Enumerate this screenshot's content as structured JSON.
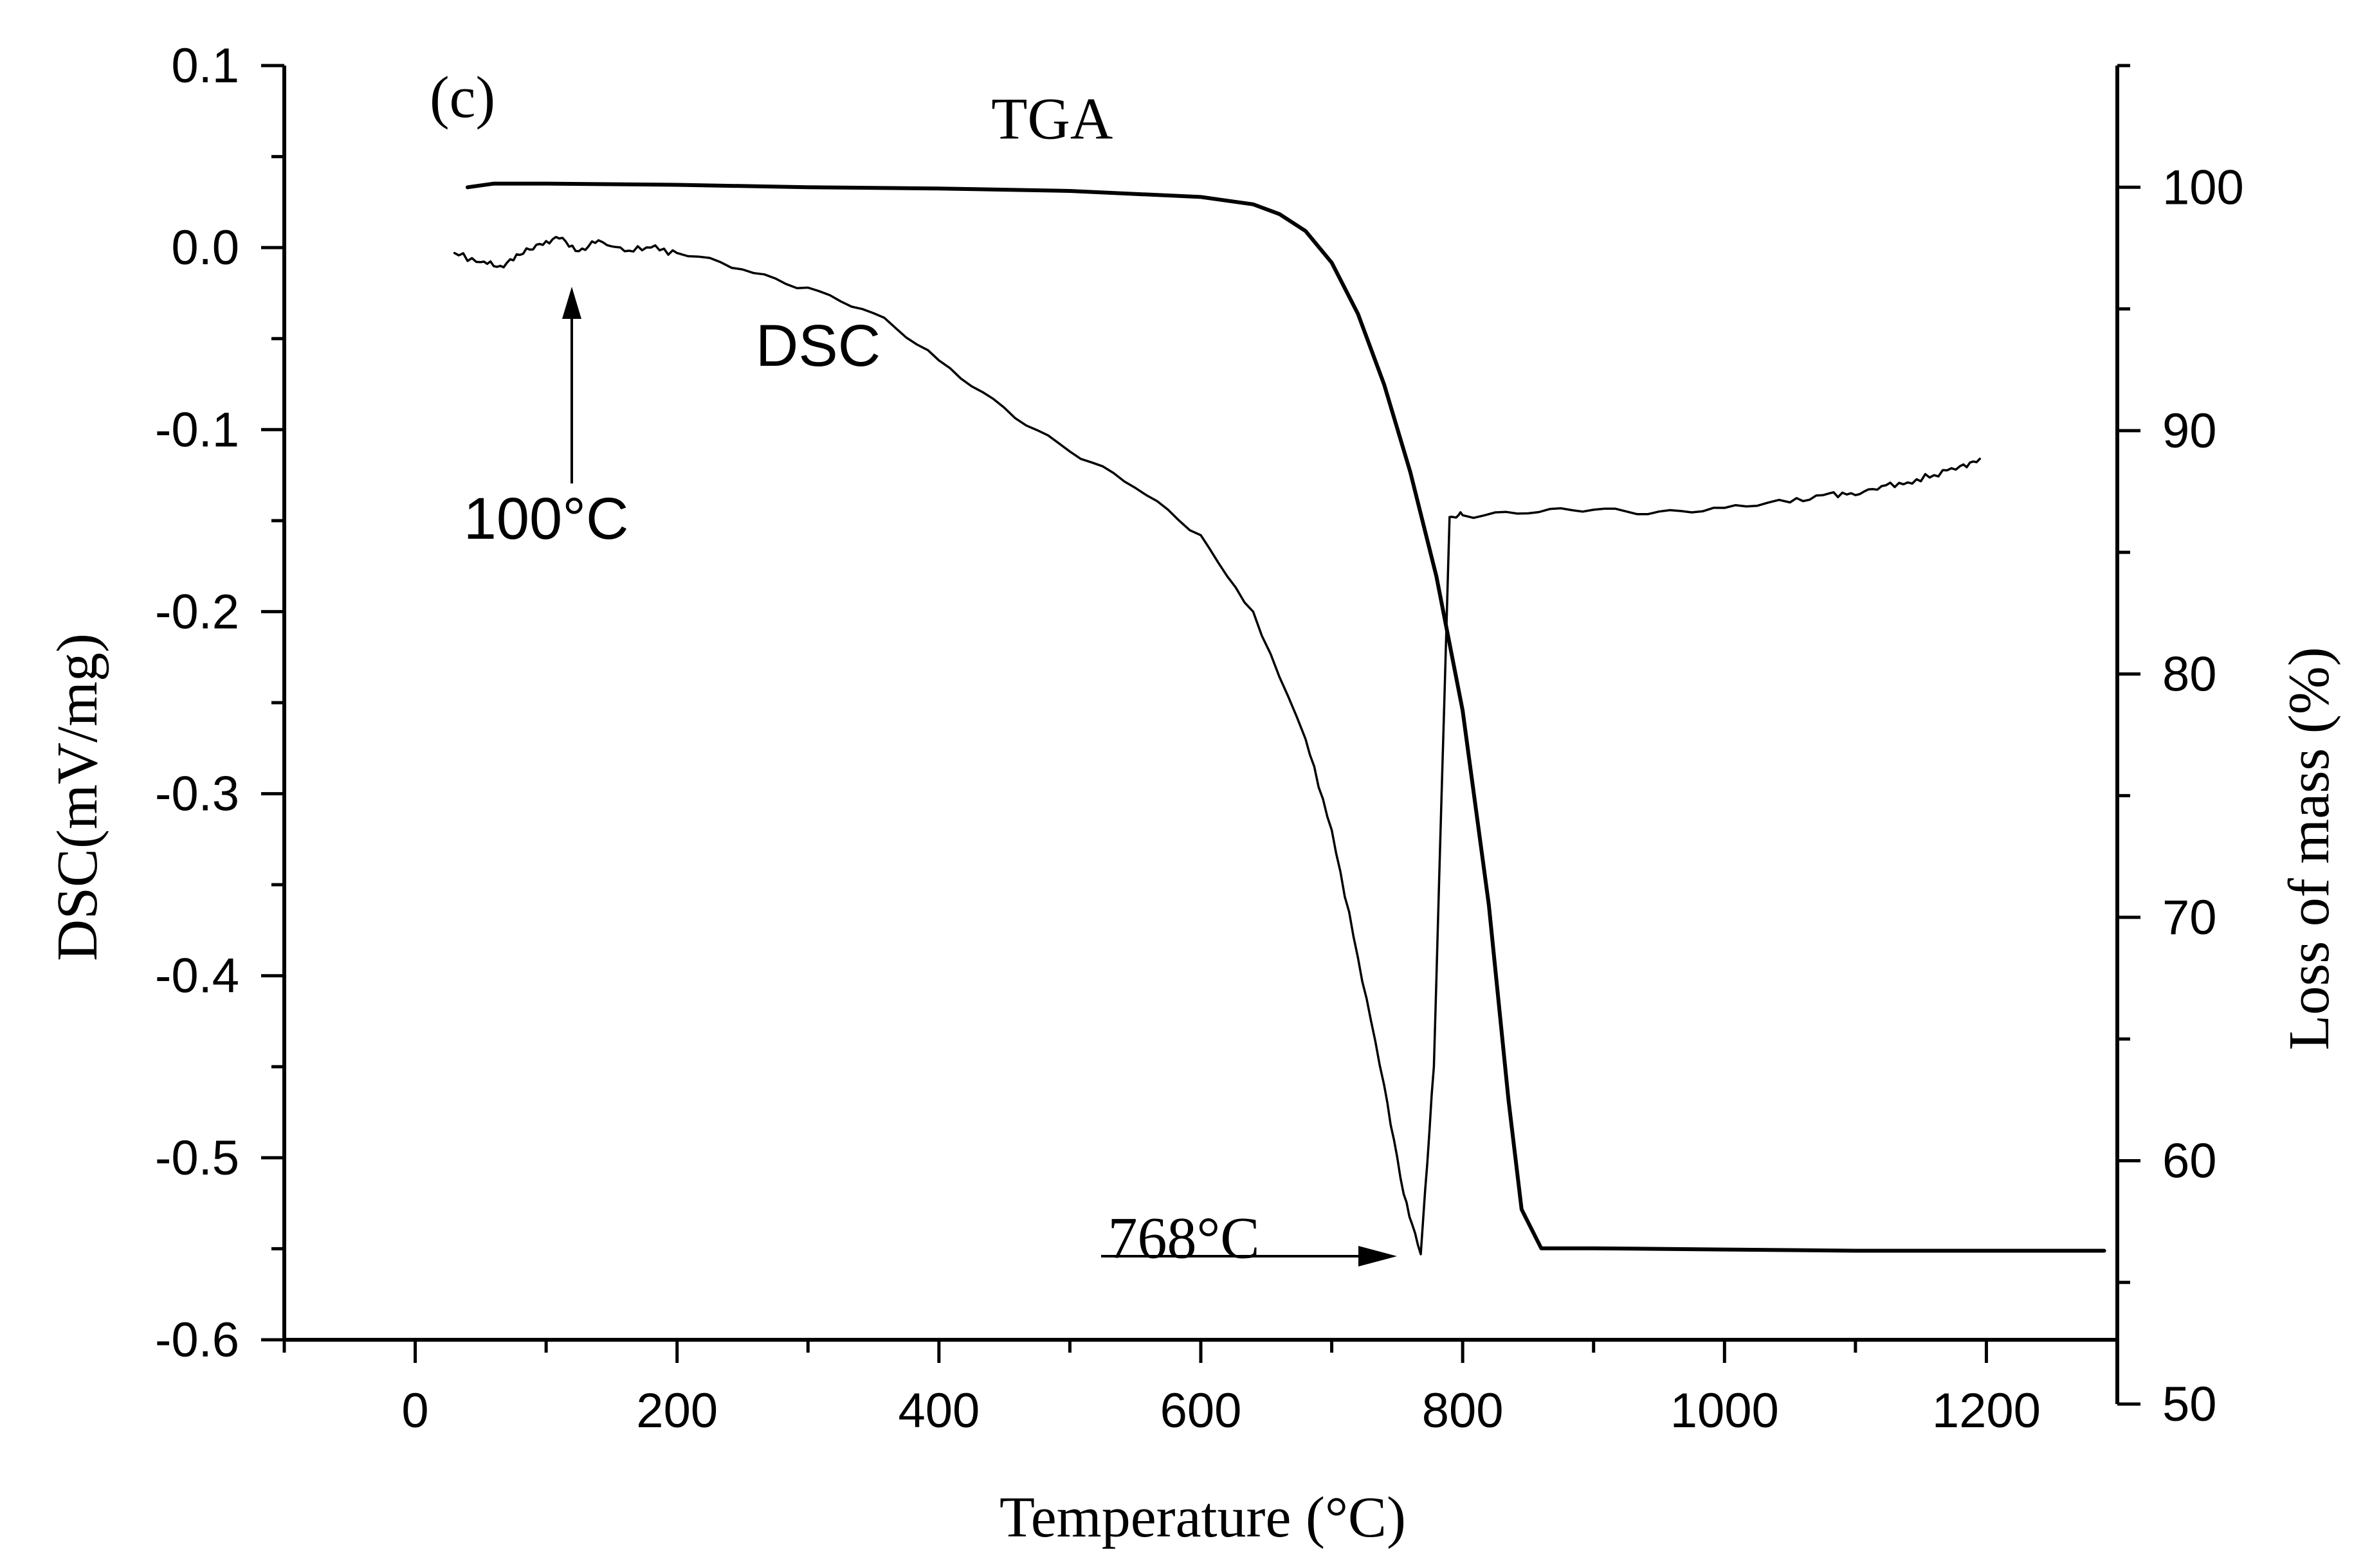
{
  "chart_data": {
    "type": "line",
    "panel_label": "(c)",
    "xlabel": "Temperature (°C)",
    "ylabel_left": "DSC(mV/mg)",
    "ylabel_right": "Loss of mass (%)",
    "xlim": [
      -100,
      1300
    ],
    "ylim_left": [
      -0.6,
      0.1
    ],
    "ylim_right": [
      50,
      105
    ],
    "x_ticks": [
      "0",
      "200",
      "400",
      "600",
      "800",
      "1000",
      "1200"
    ],
    "x_tick_values": [
      0,
      200,
      400,
      600,
      800,
      1000,
      1200
    ],
    "y_left_ticks": [
      "0.1",
      "0.0",
      "-0.1",
      "-0.2",
      "-0.3",
      "-0.4",
      "-0.5",
      "-0.6"
    ],
    "y_left_tick_values": [
      0.1,
      0.0,
      -0.1,
      -0.2,
      -0.3,
      -0.4,
      -0.5,
      -0.6
    ],
    "y_right_ticks": [
      "100",
      "90",
      "80",
      "70",
      "60",
      "50"
    ],
    "y_right_tick_values": [
      100,
      90,
      80,
      70,
      60,
      50
    ],
    "series": [
      {
        "name": "TGA",
        "axis": "right",
        "x": [
          40,
          60,
          100,
          200,
          300,
          400,
          500,
          600,
          640,
          660,
          680,
          700,
          720,
          740,
          760,
          780,
          800,
          820,
          835,
          845,
          860,
          900,
          1000,
          1100,
          1200,
          1290
        ],
        "y": [
          100.0,
          100.15,
          100.15,
          100.1,
          100.0,
          99.95,
          99.85,
          99.6,
          99.3,
          98.9,
          98.2,
          96.9,
          94.8,
          91.9,
          88.3,
          84.0,
          78.5,
          70.5,
          62.5,
          58.0,
          56.4,
          56.4,
          56.35,
          56.3,
          56.3,
          56.3
        ]
      },
      {
        "name": "DSC",
        "axis": "left",
        "x": [
          30,
          50,
          65,
          80,
          95,
          110,
          125,
          140,
          160,
          180,
          200,
          250,
          300,
          350,
          400,
          450,
          500,
          550,
          600,
          640,
          680,
          700,
          720,
          740,
          755,
          768,
          778,
          790,
          800,
          850,
          900,
          950,
          1000,
          1050,
          1080,
          1100,
          1120,
          1140,
          1160,
          1180,
          1195
        ],
        "y": [
          -0.003,
          -0.008,
          -0.01,
          -0.004,
          0.002,
          0.005,
          -0.002,
          0.004,
          -0.002,
          0.0,
          -0.003,
          -0.012,
          -0.022,
          -0.036,
          -0.062,
          -0.088,
          -0.112,
          -0.132,
          -0.158,
          -0.2,
          -0.27,
          -0.32,
          -0.39,
          -0.46,
          -0.52,
          -0.553,
          -0.45,
          -0.148,
          -0.147,
          -0.146,
          -0.144,
          -0.145,
          -0.143,
          -0.14,
          -0.135,
          -0.136,
          -0.131,
          -0.129,
          -0.125,
          -0.12,
          -0.116
        ]
      }
    ],
    "annotations": [
      {
        "text": "TGA",
        "x_data": 440,
        "y_data": 0.06
      },
      {
        "text": "DSC",
        "x_data": 260,
        "y_data": -0.065
      },
      {
        "text": "100°C",
        "x_data": 100,
        "y_data": -0.16
      },
      {
        "text": "768°C",
        "x_data": 645,
        "y_data": -0.555
      }
    ]
  }
}
